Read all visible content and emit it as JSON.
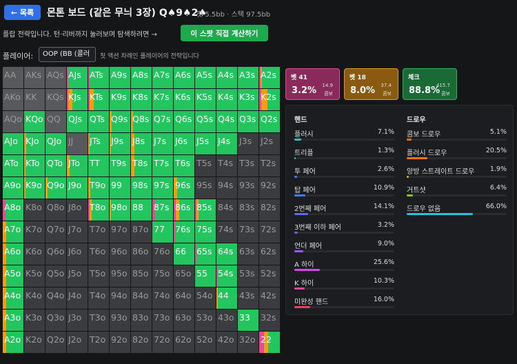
{
  "header": {
    "back_label": "← 목록",
    "title": "몬톤 보드 (같은 무늬 3장) Q♠9♠2♠",
    "pot_label": "팟 5.5bb",
    "stack_label": "· 스택 97.5bb"
  },
  "intro": {
    "text": "플랍 전략입니다. 턴·리버까지 눌러보며 탐색하려면 →",
    "calc_button": "이 스팟 직접 계산하기"
  },
  "player": {
    "label": "플레이어:",
    "selected": "OOP (BB (콜러",
    "note": "첫 액션 차례인 플레이어의 전략입니다"
  },
  "colors": {
    "check": "#22c55e",
    "bet_small": "#f59e0b",
    "bet_big": "#ec4899",
    "noncombo": "#3b3c40",
    "absent": "#58595c",
    "nothing": "#2a2b2f"
  },
  "actions": [
    {
      "name": "벳 41",
      "pct": "3.2%",
      "amount": "14.9",
      "combo": "콤보",
      "bg": "#8a2a5a",
      "border": "#d6508f"
    },
    {
      "name": "벳 18",
      "pct": "8.0%",
      "amount": "37.4",
      "combo": "콤보",
      "bg": "#8a5a10",
      "border": "#d99a22"
    },
    {
      "name": "체크",
      "pct": "88.8%",
      "amount": "415.7",
      "combo": "콤보",
      "bg": "#1a6a36",
      "border": "#2fb35d"
    }
  ],
  "grid": {
    "rows": [
      "AA AKs AQs AJs ATs A9s A8s A7s A6s A5s A4s A3s A2s",
      "AKo KK KQs KJs KTs K9s K8s K7s K6s K5s K4s K3s K2s",
      "AQo KQo QQ QJs QTs Q9s Q8s Q7s Q6s Q5s Q4s Q3s Q2s",
      "AJo KJo QJo JJ JTs J9s J8s J7s J6s J5s J4s J3s J2s",
      "ATo KTo QTo JTo TT T9s T8s T7s T6s T5s T4s T3s T2s",
      "A9o K9o Q9o J9o T9o 99 98s 97s 96s 95s 94s 93s 92s",
      "A8o K8o Q8o J8o T8o 98o 88 87s 86s 85s 84s 83s 82s",
      "A7o K7o Q7o J7o T7o 97o 87o 77 76s 75s 74s 73s 72s",
      "A6o K6o Q6o J6o T6o 96o 86o 76o 66 65s 64s 63s 62s",
      "A5o K5o Q5o J5o T5o 95o 85o 75o 65o 55 54s 53s 52s",
      "A4o K4o Q4o J4o T4o 94o 84o 74o 64o 54o 44 43s 42s",
      "A3o K3o Q3o J3o T3o 93o 83o 73o 63o 53o 43o 33 32s",
      "A2o K2o Q2o J2o T2o 92o 82o 72o 62o 52o 42o 32o 22"
    ],
    "cells": {
      "AJs": [
        0.08,
        0,
        0.92
      ],
      "ATs": [
        0.08,
        0,
        0.92
      ],
      "A9s": [
        0,
        0,
        1
      ],
      "A8s": [
        0,
        0,
        1
      ],
      "A7s": [
        0,
        0,
        1
      ],
      "A6s": [
        0,
        0,
        1
      ],
      "A5s": [
        0,
        0,
        1
      ],
      "A4s": [
        0,
        0,
        1
      ],
      "A3s": [
        0,
        0,
        1
      ],
      "A2s": [
        0.08,
        0.06,
        0.86
      ],
      "KJs": [
        0.06,
        0.2,
        0.74
      ],
      "KTs": [
        0.06,
        0.2,
        0.74
      ],
      "K9s": [
        0,
        0,
        1
      ],
      "K8s": [
        0,
        0,
        1
      ],
      "K7s": [
        0,
        0,
        1
      ],
      "K6s": [
        0,
        0,
        1
      ],
      "K5s": [
        0,
        0,
        1
      ],
      "K4s": [
        0,
        0,
        1
      ],
      "K3s": [
        0,
        0,
        1
      ],
      "K2s": [
        0.1,
        0.3,
        0.6
      ],
      "KQo": [
        0,
        0,
        1
      ],
      "QJs": [
        0,
        0,
        1
      ],
      "QTs": [
        0,
        0,
        1
      ],
      "Q9s": [
        0,
        0.1,
        0.9
      ],
      "Q8s": [
        0,
        0.1,
        0.9
      ],
      "Q7s": [
        0,
        0,
        1
      ],
      "Q6s": [
        0,
        0,
        1
      ],
      "Q5s": [
        0,
        0,
        1
      ],
      "Q4s": [
        0,
        0,
        1
      ],
      "Q3s": [
        0,
        0,
        1
      ],
      "Q2s": [
        0,
        0,
        1
      ],
      "AJo": [
        0,
        0,
        1
      ],
      "KJo": [
        0,
        0.1,
        0.9
      ],
      "QJo": [
        0,
        0,
        1
      ],
      "JTs": [
        0,
        0.08,
        0.92
      ],
      "J9s": [
        0,
        0.08,
        0.92
      ],
      "J8s": [
        0,
        0.15,
        0.85
      ],
      "J7s": [
        0,
        0,
        1
      ],
      "J6s": [
        0,
        0,
        1
      ],
      "J5s": [
        0,
        0,
        1
      ],
      "J4s": [
        0,
        0,
        1
      ],
      "ATo": [
        0,
        0,
        1
      ],
      "KTo": [
        0,
        0.08,
        0.92
      ],
      "QTo": [
        0,
        0,
        1
      ],
      "JTo": [
        0,
        0.12,
        0.88
      ],
      "TT": [
        0,
        0,
        1
      ],
      "T9s": [
        0,
        0,
        1
      ],
      "T8s": [
        0,
        0.15,
        0.85
      ],
      "T7s": [
        0,
        0,
        1
      ],
      "T6s": [
        0,
        0,
        1
      ],
      "A9o": [
        0,
        0,
        1
      ],
      "K9o": [
        0,
        0.05,
        0.95
      ],
      "Q9o": [
        0,
        0.1,
        0.9
      ],
      "J9o": [
        0,
        0,
        1
      ],
      "T9o": [
        0,
        0.1,
        0.9
      ],
      "99": [
        0,
        0,
        1
      ],
      "98s": [
        0,
        0,
        1
      ],
      "97s": [
        0,
        0,
        1
      ],
      "96s": [
        0,
        0.15,
        0.85
      ],
      "A8o": [
        0.12,
        0,
        0.88
      ],
      "T8o": [
        0.05,
        0.12,
        0.83
      ],
      "98o": [
        0,
        0.08,
        0.92
      ],
      "88": [
        0,
        0,
        1
      ],
      "87s": [
        0.12,
        0,
        0.88
      ],
      "86s": [
        0.1,
        0.15,
        0.75
      ],
      "85s": [
        0.05,
        0.1,
        0.85
      ],
      "A7o": [
        0,
        0.15,
        0.85
      ],
      "77": [
        0,
        0,
        1
      ],
      "76s": [
        0.05,
        0,
        0.95
      ],
      "75s": [
        0,
        0,
        1
      ],
      "A6o": [
        0,
        0.15,
        0.85
      ],
      "66": [
        0,
        0,
        1
      ],
      "65s": [
        0.05,
        0,
        0.95
      ],
      "64s": [
        0,
        0,
        1
      ],
      "A5o": [
        0,
        0.15,
        0.85
      ],
      "55": [
        0,
        0,
        1
      ],
      "54s": [
        0.05,
        0,
        0.95
      ],
      "A4o": [
        0,
        0.15,
        0.85
      ],
      "44": [
        0,
        0.08,
        0.92
      ],
      "A3o": [
        0,
        0.15,
        0.85
      ],
      "33": [
        0,
        0,
        1
      ],
      "A2o": [
        0,
        0.15,
        0.85
      ],
      "22": [
        0.22,
        0.2,
        0.58
      ]
    }
  },
  "stats": {
    "hands_title": "핸드",
    "draws_title": "드로우",
    "hands": [
      {
        "label": "플러시",
        "pct": "7.1%",
        "value": 7.1,
        "color": "#22c5c5"
      },
      {
        "label": "트리플",
        "pct": "1.3%",
        "value": 1.3,
        "color": "#22c5c5"
      },
      {
        "label": "투 페어",
        "pct": "2.6%",
        "value": 2.6,
        "color": "#3b82f6"
      },
      {
        "label": "탑 페어",
        "pct": "10.9%",
        "value": 10.9,
        "color": "#3b82f6"
      },
      {
        "label": "2번째 페어",
        "pct": "14.1%",
        "value": 14.1,
        "color": "#6366f1"
      },
      {
        "label": "3번째 이하 페어",
        "pct": "3.2%",
        "value": 3.2,
        "color": "#6366f1"
      },
      {
        "label": "언더 페어",
        "pct": "9.0%",
        "value": 9.0,
        "color": "#a855f7"
      },
      {
        "label": "A 하이",
        "pct": "25.6%",
        "value": 25.6,
        "color": "#d946ef"
      },
      {
        "label": "K 하이",
        "pct": "10.3%",
        "value": 10.3,
        "color": "#ec4899"
      },
      {
        "label": "미완성 핸드",
        "pct": "16.0%",
        "value": 16.0,
        "color": "#f43f5e"
      }
    ],
    "draws": [
      {
        "label": "콤보 드로우",
        "pct": "5.1%",
        "value": 5.1,
        "color": "#f97316"
      },
      {
        "label": "플러시 드로우",
        "pct": "20.5%",
        "value": 20.5,
        "color": "#f97316"
      },
      {
        "label": "양방 스트레이트 드로우",
        "pct": "1.9%",
        "value": 1.9,
        "color": "#eab308"
      },
      {
        "label": "거트샷",
        "pct": "6.4%",
        "value": 6.4,
        "color": "#84cc16"
      },
      {
        "label": "드로우 없음",
        "pct": "66.0%",
        "value": 66.0,
        "color": "#22c5e0"
      }
    ]
  }
}
